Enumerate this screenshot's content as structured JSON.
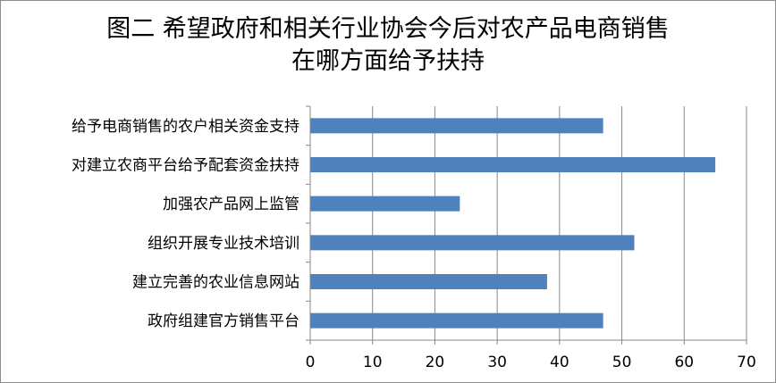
{
  "chart_data": {
    "type": "bar",
    "orientation": "horizontal",
    "title": "图二 希望政府和相关行业协会今后对农产品电商销售在哪方面给予扶持",
    "title_lines": [
      "图二 希望政府和相关行业协会今后对农产品电商销售",
      "在哪方面给予扶持"
    ],
    "categories": [
      "给予电商销售的农户相关资金支持",
      "对建立农商平台给予配套资金扶持",
      "加强农产品网上监管",
      "组织开展专业技术培训",
      "建立完善的农业信息网站",
      "政府组建官方销售平台"
    ],
    "values": [
      47,
      65,
      24,
      52,
      38,
      47
    ],
    "xlim": [
      0,
      70
    ],
    "xticks": [
      0,
      10,
      20,
      30,
      40,
      50,
      60,
      70
    ],
    "xtick_labels": [
      "0",
      "10",
      "20",
      "30",
      "40",
      "50",
      "60",
      "70"
    ],
    "xlabel": "",
    "ylabel": "",
    "grid": "vertical-major",
    "legend": "none",
    "bar_color": "#4f81bd",
    "grid_color": "#878787"
  }
}
